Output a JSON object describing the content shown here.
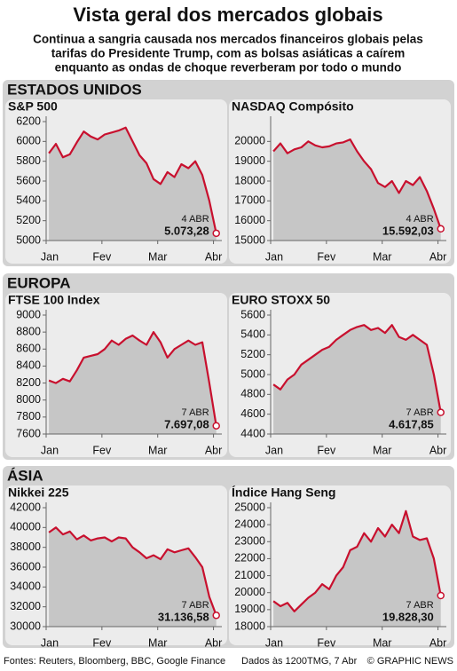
{
  "title": "Vista geral dos mercados globais",
  "subtitle": [
    "Continua a sangria causada nos mercados financeiros globais pelas",
    "tarifas do Presidente Trump, com as bolsas asiáticas a caírem",
    "enquanto as ondas de choque reverberam por todo o mundo"
  ],
  "regions": [
    "ESTADOS UNIDOS",
    "EUROPA",
    "ÁSIA"
  ],
  "footer": {
    "sources": "Fontes: Reuters, Bloomberg, BBC, Google Finance",
    "date": "Dados às 1200TMG, 7 Abr",
    "credit": "© GRAPHIC NEWS"
  },
  "chart_data": [
    {
      "type": "line",
      "title": "S&P 500",
      "color": "#c8102e",
      "note": "4 ABR",
      "x": [
        0.05,
        0.175,
        0.3,
        0.425,
        0.55,
        0.675,
        0.8,
        0.925,
        1.05,
        1.175,
        1.3,
        1.425,
        1.55,
        1.675,
        1.8,
        1.925,
        2.05,
        2.175,
        2.3,
        2.425,
        2.55,
        2.675,
        2.8,
        2.925,
        3.05
      ],
      "values": [
        5880,
        5975,
        5840,
        5870,
        5990,
        6100,
        6050,
        6020,
        6070,
        6090,
        6110,
        6140,
        6000,
        5860,
        5780,
        5620,
        5570,
        5690,
        5640,
        5770,
        5730,
        5800,
        5660,
        5400,
        5073.28
      ],
      "value_labels": [
        null,
        null,
        null,
        null,
        null,
        null,
        null,
        null,
        null,
        null,
        null,
        null,
        null,
        null,
        null,
        null,
        null,
        null,
        null,
        null,
        null,
        null,
        null,
        null,
        "5.073,28"
      ],
      "xlim": [
        0,
        3.15
      ],
      "xticks": [
        {
          "value": 0,
          "label": "Jan"
        },
        {
          "value": 1,
          "label": "Fev"
        },
        {
          "value": 2,
          "label": "Mar"
        },
        {
          "value": 3,
          "label": "Abr"
        }
      ],
      "ylim": [
        5000,
        6200
      ],
      "yticks": [
        5000,
        5200,
        5400,
        5600,
        5800,
        6000,
        6200
      ]
    },
    {
      "type": "line",
      "title": "NASDAQ Compósito",
      "color": "#c8102e",
      "note": "4 ABR",
      "x": [
        0.05,
        0.175,
        0.3,
        0.425,
        0.55,
        0.675,
        0.8,
        0.925,
        1.05,
        1.175,
        1.3,
        1.425,
        1.55,
        1.675,
        1.8,
        1.925,
        2.05,
        2.175,
        2.3,
        2.425,
        2.55,
        2.675,
        2.8,
        2.925,
        3.05
      ],
      "values": [
        19500,
        19900,
        19400,
        19600,
        19700,
        20000,
        19800,
        19700,
        19750,
        19900,
        19950,
        20100,
        19500,
        19000,
        18600,
        17900,
        17700,
        18000,
        17400,
        18000,
        17800,
        18200,
        17500,
        16600,
        15592.03
      ],
      "value_labels": [
        null,
        null,
        null,
        null,
        null,
        null,
        null,
        null,
        null,
        null,
        null,
        null,
        null,
        null,
        null,
        null,
        null,
        null,
        null,
        null,
        null,
        null,
        null,
        null,
        "15.592,03"
      ],
      "xlim": [
        0,
        3.15
      ],
      "xticks": [
        {
          "value": 0,
          "label": "Jan"
        },
        {
          "value": 1,
          "label": "Fev"
        },
        {
          "value": 2,
          "label": "Mar"
        },
        {
          "value": 3,
          "label": "Abr"
        }
      ],
      "ylim": [
        15000,
        21000
      ],
      "yticks": [
        15000,
        16000,
        17000,
        18000,
        19000,
        20000
      ]
    },
    {
      "type": "line",
      "title": "FTSE 100 Index",
      "color": "#c8102e",
      "note": "7 ABR",
      "x": [
        0.05,
        0.175,
        0.3,
        0.425,
        0.55,
        0.675,
        0.8,
        0.925,
        1.05,
        1.175,
        1.3,
        1.425,
        1.55,
        1.675,
        1.8,
        1.925,
        2.05,
        2.175,
        2.3,
        2.425,
        2.55,
        2.675,
        2.8,
        2.925,
        3.05
      ],
      "values": [
        8230,
        8200,
        8250,
        8220,
        8350,
        8500,
        8520,
        8540,
        8600,
        8700,
        8650,
        8720,
        8760,
        8700,
        8650,
        8800,
        8680,
        8500,
        8600,
        8650,
        8700,
        8650,
        8680,
        8200,
        7697.08
      ],
      "value_labels": [
        null,
        null,
        null,
        null,
        null,
        null,
        null,
        null,
        null,
        null,
        null,
        null,
        null,
        null,
        null,
        null,
        null,
        null,
        null,
        null,
        null,
        null,
        null,
        null,
        "7.697,08"
      ],
      "xlim": [
        0,
        3.15
      ],
      "xticks": [
        {
          "value": 0,
          "label": "Jan"
        },
        {
          "value": 1,
          "label": "Fev"
        },
        {
          "value": 2,
          "label": "Mar"
        },
        {
          "value": 3,
          "label": "Abr"
        }
      ],
      "ylim": [
        7600,
        9000
      ],
      "yticks": [
        7600,
        7800,
        8000,
        8200,
        8400,
        8600,
        8800,
        9000
      ]
    },
    {
      "type": "line",
      "title": "EURO STOXX 50",
      "color": "#c8102e",
      "note": "7 ABR",
      "x": [
        0.05,
        0.175,
        0.3,
        0.425,
        0.55,
        0.675,
        0.8,
        0.925,
        1.05,
        1.175,
        1.3,
        1.425,
        1.55,
        1.675,
        1.8,
        1.925,
        2.05,
        2.175,
        2.3,
        2.425,
        2.55,
        2.675,
        2.8,
        2.925,
        3.05
      ],
      "values": [
        4900,
        4850,
        4950,
        5000,
        5100,
        5150,
        5200,
        5250,
        5280,
        5350,
        5400,
        5450,
        5480,
        5500,
        5450,
        5470,
        5420,
        5500,
        5380,
        5350,
        5400,
        5350,
        5300,
        5000,
        4617.85
      ],
      "value_labels": [
        null,
        null,
        null,
        null,
        null,
        null,
        null,
        null,
        null,
        null,
        null,
        null,
        null,
        null,
        null,
        null,
        null,
        null,
        null,
        null,
        null,
        null,
        null,
        null,
        "4.617,85"
      ],
      "xlim": [
        0,
        3.15
      ],
      "xticks": [
        {
          "value": 0,
          "label": "Jan"
        },
        {
          "value": 1,
          "label": "Fev"
        },
        {
          "value": 2,
          "label": "Mar"
        },
        {
          "value": 3,
          "label": "Abr"
        }
      ],
      "ylim": [
        4400,
        5600
      ],
      "yticks": [
        4400,
        4600,
        4800,
        5000,
        5200,
        5400,
        5600
      ]
    },
    {
      "type": "line",
      "title": "Nikkei 225",
      "color": "#c8102e",
      "note": "7 ABR",
      "x": [
        0.05,
        0.175,
        0.3,
        0.425,
        0.55,
        0.675,
        0.8,
        0.925,
        1.05,
        1.175,
        1.3,
        1.425,
        1.55,
        1.675,
        1.8,
        1.925,
        2.05,
        2.175,
        2.3,
        2.425,
        2.55,
        2.675,
        2.8,
        2.925,
        3.05
      ],
      "values": [
        39500,
        40000,
        39300,
        39600,
        38800,
        39200,
        38700,
        38900,
        39000,
        38600,
        39000,
        38900,
        38000,
        37500,
        36900,
        37200,
        36800,
        37800,
        37500,
        37700,
        37900,
        37000,
        36000,
        33000,
        31136.58
      ],
      "value_labels": [
        null,
        null,
        null,
        null,
        null,
        null,
        null,
        null,
        null,
        null,
        null,
        null,
        null,
        null,
        null,
        null,
        null,
        null,
        null,
        null,
        null,
        null,
        null,
        null,
        "31.136,58"
      ],
      "xlim": [
        0,
        3.15
      ],
      "xticks": [
        {
          "value": 0,
          "label": "Jan"
        },
        {
          "value": 1,
          "label": "Fev"
        },
        {
          "value": 2,
          "label": "Mar"
        },
        {
          "value": 3,
          "label": "Abr"
        }
      ],
      "ylim": [
        30000,
        42000
      ],
      "yticks": [
        30000,
        32000,
        34000,
        36000,
        38000,
        40000,
        42000
      ]
    },
    {
      "type": "line",
      "title": "Índice Hang Seng",
      "color": "#c8102e",
      "note": "7 ABR",
      "x": [
        0.05,
        0.175,
        0.3,
        0.425,
        0.55,
        0.675,
        0.8,
        0.925,
        1.05,
        1.175,
        1.3,
        1.425,
        1.55,
        1.675,
        1.8,
        1.925,
        2.05,
        2.175,
        2.3,
        2.425,
        2.55,
        2.675,
        2.8,
        2.925,
        3.05
      ],
      "values": [
        19500,
        19200,
        19400,
        18900,
        19300,
        19700,
        20000,
        20500,
        20200,
        21000,
        21500,
        22500,
        22700,
        23500,
        23000,
        23800,
        23300,
        24000,
        23500,
        24800,
        23300,
        23100,
        23200,
        22000,
        19828.3
      ],
      "value_labels": [
        null,
        null,
        null,
        null,
        null,
        null,
        null,
        null,
        null,
        null,
        null,
        null,
        null,
        null,
        null,
        null,
        null,
        null,
        null,
        null,
        null,
        null,
        null,
        null,
        "19.828,30"
      ],
      "xlim": [
        0,
        3.15
      ],
      "xticks": [
        {
          "value": 0,
          "label": "Jan"
        },
        {
          "value": 1,
          "label": "Fev"
        },
        {
          "value": 2,
          "label": "Mar"
        },
        {
          "value": 3,
          "label": "Abr"
        }
      ],
      "ylim": [
        18000,
        25000
      ],
      "yticks": [
        18000,
        19000,
        20000,
        21000,
        22000,
        23000,
        24000,
        25000
      ]
    }
  ]
}
